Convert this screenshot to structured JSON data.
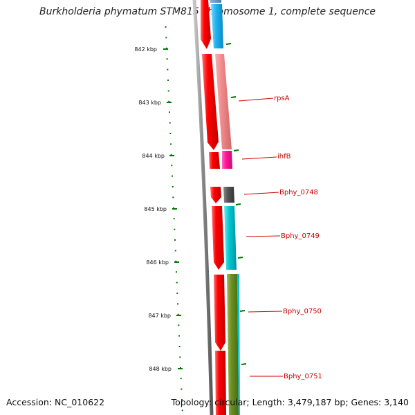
{
  "title": "Burkholderia phymatum STM815 chromosome 1, complete sequence",
  "accession_text": "Accession: NC_010622",
  "topology_text": "Topology: circular; Length: 3,479,187 bp; Genes: 3,140",
  "ruler": {
    "unit": "kbp",
    "ticks": [
      842,
      843,
      844,
      845,
      846,
      847,
      848
    ],
    "tick_labels": [
      "842 kbp",
      "843 kbp",
      "844 kbp",
      "845 kbp",
      "846 kbp",
      "847 kbp",
      "848 kbp"
    ]
  },
  "genes": [
    {
      "label": "rpsA",
      "color": "#f08a8a"
    },
    {
      "label": "ihfB",
      "color": "#ff1493"
    },
    {
      "label": "Bphy_0748",
      "color": "#555555"
    },
    {
      "label": "Bphy_0749",
      "color": "#00c8d2"
    },
    {
      "label": "Bphy_0750",
      "color": "#6b8e23"
    },
    {
      "label": "Bphy_0751",
      "color": "#6b8e23"
    }
  ],
  "colors": {
    "cds_strand": "#ff0000",
    "ruler_dots": "#007700",
    "backbone": "#888888",
    "label_line": "#cc0000"
  }
}
